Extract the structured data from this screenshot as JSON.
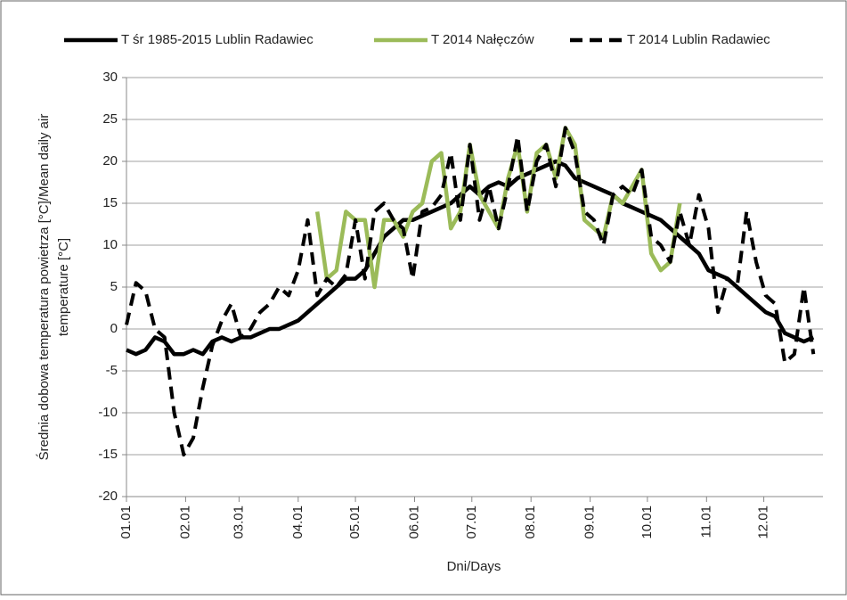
{
  "chart_data": {
    "type": "line",
    "legend": "top",
    "grid": true,
    "xlabel": "Dni/Days",
    "ylabel": [
      "Średnia dobowa temperatura powietrza [°C]/Mean daily air",
      "temperature [°C]"
    ],
    "x": [
      1,
      6,
      11,
      16,
      21,
      26,
      31,
      36,
      41,
      46,
      51,
      56,
      61,
      66,
      71,
      76,
      81,
      86,
      91,
      96,
      101,
      106,
      111,
      116,
      121,
      126,
      131,
      136,
      141,
      146,
      151,
      156,
      161,
      166,
      171,
      176,
      181,
      186,
      191,
      196,
      201,
      206,
      211,
      216,
      221,
      226,
      231,
      236,
      241,
      246,
      251,
      256,
      261,
      266,
      271,
      276,
      281,
      286,
      291,
      296,
      301,
      306,
      311,
      316,
      321,
      326,
      331,
      336,
      341,
      346,
      351,
      356,
      361
    ],
    "xlim": [
      1,
      366
    ],
    "xticks": [
      {
        "value": 1,
        "label": "01.01"
      },
      {
        "value": 32,
        "label": "02.01"
      },
      {
        "value": 60,
        "label": "03.01"
      },
      {
        "value": 91,
        "label": "04.01"
      },
      {
        "value": 121,
        "label": "05.01"
      },
      {
        "value": 152,
        "label": "06.01"
      },
      {
        "value": 182,
        "label": "07.01"
      },
      {
        "value": 213,
        "label": "08.01"
      },
      {
        "value": 244,
        "label": "09.01"
      },
      {
        "value": 274,
        "label": "10.01"
      },
      {
        "value": 305,
        "label": "11.01"
      },
      {
        "value": 335,
        "label": "12.01"
      }
    ],
    "ylim": [
      -20,
      30
    ],
    "yticks": [
      -20,
      -15,
      -10,
      -5,
      0,
      5,
      10,
      15,
      20,
      25,
      30
    ],
    "series": [
      {
        "name": "T śr 1985-2015 Lublin Radawiec",
        "color": "#000000",
        "dash": false,
        "values": [
          -2.5,
          -3,
          -2.5,
          -1,
          -1.5,
          -3,
          -3,
          -2.5,
          -3,
          -1.5,
          -1,
          -1.5,
          -1,
          -1,
          -0.5,
          0,
          0,
          0.5,
          1,
          2,
          3,
          4,
          5,
          6,
          6,
          7,
          9,
          11,
          12,
          13,
          13,
          13.5,
          14,
          14.5,
          15,
          16,
          17,
          16,
          17,
          17.5,
          17,
          18,
          18.5,
          19,
          19.5,
          20,
          19.5,
          18,
          17.5,
          17,
          16.5,
          16,
          15,
          14.5,
          14,
          13.5,
          13,
          12,
          11,
          10,
          9,
          7,
          6.5,
          6,
          5,
          4,
          3,
          2,
          1.5,
          -0.5,
          -1,
          -1.5,
          -1
        ]
      },
      {
        "name": "T 2014 Nałęczów",
        "color": "#9bbb59",
        "dash": false,
        "values": [
          null,
          null,
          null,
          null,
          null,
          null,
          null,
          null,
          null,
          null,
          null,
          null,
          null,
          null,
          null,
          null,
          null,
          null,
          null,
          null,
          14,
          6,
          7,
          14,
          13,
          13,
          5,
          13,
          13,
          11,
          14,
          15,
          20,
          21,
          12,
          14,
          22,
          16,
          14,
          12,
          18,
          22,
          14,
          21,
          22,
          18,
          24,
          22,
          13,
          12,
          11,
          16,
          15,
          17,
          19,
          9,
          7,
          8,
          15,
          null,
          null,
          null,
          null,
          null,
          null,
          null,
          null,
          null,
          null,
          null,
          null,
          null,
          null
        ]
      },
      {
        "name": "T 2014 Lublin Radawiec",
        "color": "#000000",
        "dash": true,
        "values": [
          0.5,
          5.5,
          4.5,
          0,
          -1,
          -10,
          -15,
          -13,
          -7,
          -2,
          1,
          3,
          -1,
          0,
          2,
          3,
          5,
          4,
          7,
          13,
          4,
          6,
          5,
          6.5,
          13,
          6,
          14,
          15,
          13,
          12,
          6,
          14,
          14.5,
          16,
          21,
          13,
          22,
          13,
          17,
          12,
          17,
          23,
          14,
          20,
          22,
          17,
          24,
          21,
          14,
          13,
          10,
          16,
          17,
          16,
          19,
          11,
          10,
          8,
          14,
          10,
          16,
          12,
          2,
          6,
          5,
          14,
          8,
          4,
          3,
          -4,
          -3,
          5,
          -3
        ]
      }
    ]
  }
}
